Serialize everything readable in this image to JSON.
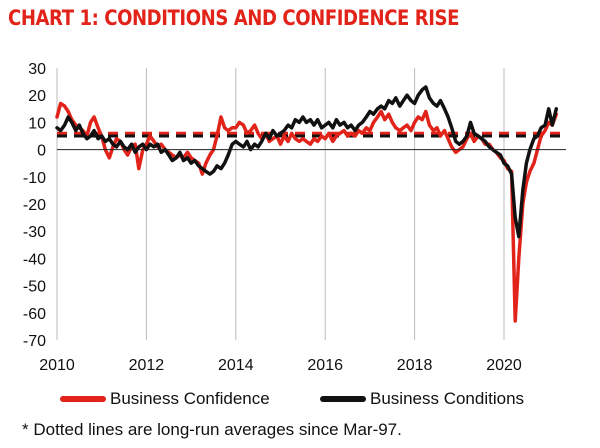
{
  "chart_data": {
    "type": "line",
    "title": "CHART 1: CONDITIONS AND CONFIDENCE RISE",
    "xlabel": "",
    "ylabel": "",
    "xlim": [
      2010,
      2021.5
    ],
    "ylim": [
      -70,
      30
    ],
    "y_ticks": [
      30,
      20,
      10,
      0,
      -10,
      -20,
      -30,
      -40,
      -50,
      -60,
      -70
    ],
    "x_ticks": [
      2010,
      2012,
      2014,
      2016,
      2018,
      2020
    ],
    "grid": "vertical",
    "legend_position": "bottom",
    "series": [
      {
        "name": "Business Confidence",
        "color": "#e2231a",
        "long_run_average": 6,
        "points": [
          [
            2010.0,
            12
          ],
          [
            2010.08,
            17
          ],
          [
            2010.17,
            16
          ],
          [
            2010.25,
            14
          ],
          [
            2010.33,
            11
          ],
          [
            2010.42,
            9
          ],
          [
            2010.5,
            8
          ],
          [
            2010.58,
            7
          ],
          [
            2010.67,
            5
          ],
          [
            2010.75,
            10
          ],
          [
            2010.83,
            12
          ],
          [
            2010.92,
            8
          ],
          [
            2011.0,
            5
          ],
          [
            2011.08,
            0
          ],
          [
            2011.17,
            -3
          ],
          [
            2011.25,
            1
          ],
          [
            2011.33,
            4
          ],
          [
            2011.42,
            3
          ],
          [
            2011.5,
            0
          ],
          [
            2011.58,
            -2
          ],
          [
            2011.67,
            1
          ],
          [
            2011.75,
            2
          ],
          [
            2011.83,
            -7
          ],
          [
            2011.92,
            0
          ],
          [
            2012.0,
            2
          ],
          [
            2012.08,
            5
          ],
          [
            2012.17,
            3
          ],
          [
            2012.25,
            1
          ],
          [
            2012.33,
            2
          ],
          [
            2012.42,
            0
          ],
          [
            2012.5,
            -1
          ],
          [
            2012.58,
            -2
          ],
          [
            2012.67,
            -3
          ],
          [
            2012.75,
            -2
          ],
          [
            2012.83,
            -3
          ],
          [
            2012.92,
            -1
          ],
          [
            2013.0,
            -3
          ],
          [
            2013.08,
            -4
          ],
          [
            2013.17,
            -5
          ],
          [
            2013.25,
            -9
          ],
          [
            2013.33,
            -5
          ],
          [
            2013.42,
            -2
          ],
          [
            2013.5,
            0
          ],
          [
            2013.58,
            5
          ],
          [
            2013.67,
            12
          ],
          [
            2013.75,
            8
          ],
          [
            2013.83,
            7
          ],
          [
            2013.92,
            8
          ],
          [
            2014.0,
            8
          ],
          [
            2014.08,
            10
          ],
          [
            2014.17,
            9
          ],
          [
            2014.25,
            6
          ],
          [
            2014.33,
            7
          ],
          [
            2014.42,
            9
          ],
          [
            2014.5,
            6
          ],
          [
            2014.58,
            4
          ],
          [
            2014.67,
            6
          ],
          [
            2014.75,
            3
          ],
          [
            2014.83,
            4
          ],
          [
            2014.92,
            5
          ],
          [
            2015.0,
            2
          ],
          [
            2015.08,
            5
          ],
          [
            2015.17,
            3
          ],
          [
            2015.25,
            6
          ],
          [
            2015.33,
            4
          ],
          [
            2015.42,
            3
          ],
          [
            2015.5,
            4
          ],
          [
            2015.58,
            3
          ],
          [
            2015.67,
            2
          ],
          [
            2015.75,
            4
          ],
          [
            2015.83,
            3
          ],
          [
            2015.92,
            5
          ],
          [
            2016.0,
            4
          ],
          [
            2016.08,
            6
          ],
          [
            2016.17,
            3
          ],
          [
            2016.25,
            5
          ],
          [
            2016.33,
            6
          ],
          [
            2016.42,
            7
          ],
          [
            2016.5,
            5
          ],
          [
            2016.58,
            6
          ],
          [
            2016.67,
            5
          ],
          [
            2016.75,
            7
          ],
          [
            2016.83,
            6
          ],
          [
            2016.92,
            8
          ],
          [
            2017.0,
            7
          ],
          [
            2017.08,
            10
          ],
          [
            2017.17,
            12
          ],
          [
            2017.25,
            14
          ],
          [
            2017.33,
            11
          ],
          [
            2017.42,
            13
          ],
          [
            2017.5,
            10
          ],
          [
            2017.58,
            8
          ],
          [
            2017.67,
            7
          ],
          [
            2017.75,
            8
          ],
          [
            2017.83,
            9
          ],
          [
            2017.92,
            7
          ],
          [
            2018.0,
            10
          ],
          [
            2018.08,
            12
          ],
          [
            2018.17,
            11
          ],
          [
            2018.25,
            14
          ],
          [
            2018.33,
            9
          ],
          [
            2018.42,
            7
          ],
          [
            2018.5,
            8
          ],
          [
            2018.58,
            5
          ],
          [
            2018.67,
            7
          ],
          [
            2018.75,
            4
          ],
          [
            2018.83,
            1
          ],
          [
            2018.92,
            -1
          ],
          [
            2019.0,
            0
          ],
          [
            2019.08,
            1
          ],
          [
            2019.17,
            4
          ],
          [
            2019.25,
            6
          ],
          [
            2019.33,
            3
          ],
          [
            2019.42,
            5
          ],
          [
            2019.5,
            4
          ],
          [
            2019.58,
            2
          ],
          [
            2019.67,
            2
          ],
          [
            2019.75,
            0
          ],
          [
            2019.83,
            -1
          ],
          [
            2019.92,
            -3
          ],
          [
            2020.0,
            -4
          ],
          [
            2020.08,
            -7
          ],
          [
            2020.17,
            -8
          ],
          [
            2020.25,
            -63
          ],
          [
            2020.33,
            -40
          ],
          [
            2020.42,
            -20
          ],
          [
            2020.5,
            -12
          ],
          [
            2020.58,
            -8
          ],
          [
            2020.67,
            -5
          ],
          [
            2020.75,
            0
          ],
          [
            2020.83,
            5
          ],
          [
            2020.92,
            7
          ],
          [
            2021.0,
            10
          ],
          [
            2021.08,
            9
          ],
          [
            2021.17,
            13
          ]
        ]
      },
      {
        "name": "Business Conditions",
        "color": "#111111",
        "long_run_average": 5,
        "points": [
          [
            2010.0,
            8
          ],
          [
            2010.08,
            7
          ],
          [
            2010.17,
            9
          ],
          [
            2010.25,
            12
          ],
          [
            2010.33,
            10
          ],
          [
            2010.42,
            7
          ],
          [
            2010.5,
            9
          ],
          [
            2010.58,
            6
          ],
          [
            2010.67,
            4
          ],
          [
            2010.75,
            5
          ],
          [
            2010.83,
            7
          ],
          [
            2010.92,
            4
          ],
          [
            2011.0,
            5
          ],
          [
            2011.08,
            3
          ],
          [
            2011.17,
            4
          ],
          [
            2011.25,
            2
          ],
          [
            2011.33,
            1
          ],
          [
            2011.42,
            3
          ],
          [
            2011.5,
            1
          ],
          [
            2011.58,
            0
          ],
          [
            2011.67,
            2
          ],
          [
            2011.75,
            -1
          ],
          [
            2011.83,
            1
          ],
          [
            2011.92,
            2
          ],
          [
            2012.0,
            0
          ],
          [
            2012.08,
            2
          ],
          [
            2012.17,
            1
          ],
          [
            2012.25,
            2
          ],
          [
            2012.33,
            -1
          ],
          [
            2012.42,
            0
          ],
          [
            2012.5,
            -2
          ],
          [
            2012.58,
            -4
          ],
          [
            2012.67,
            -3
          ],
          [
            2012.75,
            -1
          ],
          [
            2012.83,
            -4
          ],
          [
            2012.92,
            -3
          ],
          [
            2013.0,
            -5
          ],
          [
            2013.08,
            -4
          ],
          [
            2013.17,
            -6
          ],
          [
            2013.25,
            -7
          ],
          [
            2013.33,
            -8
          ],
          [
            2013.42,
            -9
          ],
          [
            2013.5,
            -8
          ],
          [
            2013.58,
            -6
          ],
          [
            2013.67,
            -7
          ],
          [
            2013.75,
            -5
          ],
          [
            2013.83,
            -2
          ],
          [
            2013.92,
            2
          ],
          [
            2014.0,
            3
          ],
          [
            2014.08,
            2
          ],
          [
            2014.17,
            1
          ],
          [
            2014.25,
            3
          ],
          [
            2014.33,
            0
          ],
          [
            2014.42,
            2
          ],
          [
            2014.5,
            1
          ],
          [
            2014.58,
            3
          ],
          [
            2014.67,
            6
          ],
          [
            2014.75,
            4
          ],
          [
            2014.83,
            7
          ],
          [
            2014.92,
            5
          ],
          [
            2015.0,
            6
          ],
          [
            2015.08,
            7
          ],
          [
            2015.17,
            9
          ],
          [
            2015.25,
            8
          ],
          [
            2015.33,
            11
          ],
          [
            2015.42,
            10
          ],
          [
            2015.5,
            12
          ],
          [
            2015.58,
            10
          ],
          [
            2015.67,
            11
          ],
          [
            2015.75,
            9
          ],
          [
            2015.83,
            11
          ],
          [
            2015.92,
            8
          ],
          [
            2016.0,
            9
          ],
          [
            2016.08,
            10
          ],
          [
            2016.17,
            8
          ],
          [
            2016.25,
            11
          ],
          [
            2016.33,
            9
          ],
          [
            2016.42,
            10
          ],
          [
            2016.5,
            8
          ],
          [
            2016.58,
            9
          ],
          [
            2016.67,
            7
          ],
          [
            2016.75,
            9
          ],
          [
            2016.83,
            10
          ],
          [
            2016.92,
            12
          ],
          [
            2017.0,
            14
          ],
          [
            2017.08,
            13
          ],
          [
            2017.17,
            15
          ],
          [
            2017.25,
            16
          ],
          [
            2017.33,
            15
          ],
          [
            2017.42,
            18
          ],
          [
            2017.5,
            17
          ],
          [
            2017.58,
            19
          ],
          [
            2017.67,
            16
          ],
          [
            2017.75,
            18
          ],
          [
            2017.83,
            20
          ],
          [
            2017.92,
            18
          ],
          [
            2018.0,
            17
          ],
          [
            2018.08,
            20
          ],
          [
            2018.17,
            22
          ],
          [
            2018.25,
            23
          ],
          [
            2018.33,
            19
          ],
          [
            2018.42,
            17
          ],
          [
            2018.5,
            16
          ],
          [
            2018.58,
            18
          ],
          [
            2018.67,
            15
          ],
          [
            2018.75,
            12
          ],
          [
            2018.83,
            8
          ],
          [
            2018.92,
            3
          ],
          [
            2019.0,
            2
          ],
          [
            2019.08,
            3
          ],
          [
            2019.17,
            5
          ],
          [
            2019.25,
            10
          ],
          [
            2019.33,
            6
          ],
          [
            2019.42,
            5
          ],
          [
            2019.5,
            4
          ],
          [
            2019.58,
            3
          ],
          [
            2019.67,
            1
          ],
          [
            2019.75,
            0
          ],
          [
            2019.83,
            -1
          ],
          [
            2019.92,
            -2
          ],
          [
            2020.0,
            -5
          ],
          [
            2020.08,
            -6
          ],
          [
            2020.17,
            -9
          ],
          [
            2020.25,
            -25
          ],
          [
            2020.33,
            -32
          ],
          [
            2020.42,
            -15
          ],
          [
            2020.5,
            -5
          ],
          [
            2020.58,
            0
          ],
          [
            2020.67,
            4
          ],
          [
            2020.75,
            5
          ],
          [
            2020.83,
            8
          ],
          [
            2020.92,
            9
          ],
          [
            2021.0,
            15
          ],
          [
            2021.08,
            9
          ],
          [
            2021.17,
            15
          ]
        ]
      }
    ],
    "legend": [
      "Business Confidence",
      "Business Conditions"
    ],
    "footnote": "* Dotted lines are long-run averages since Mar-97."
  }
}
